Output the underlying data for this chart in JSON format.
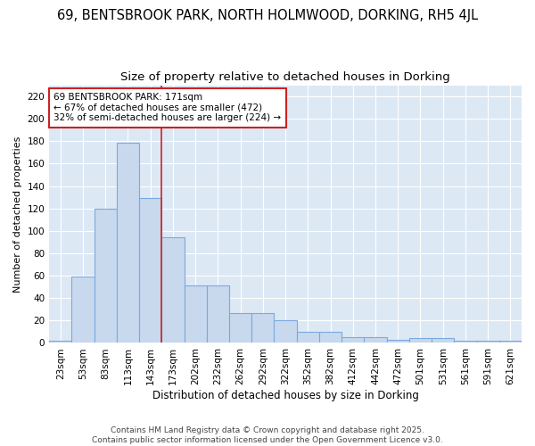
{
  "title": "69, BENTSBROOK PARK, NORTH HOLMWOOD, DORKING, RH5 4JL",
  "subtitle": "Size of property relative to detached houses in Dorking",
  "xlabel": "Distribution of detached houses by size in Dorking",
  "ylabel": "Number of detached properties",
  "bar_values": [
    2,
    59,
    120,
    179,
    129,
    94,
    51,
    51,
    27,
    27,
    20,
    10,
    10,
    5,
    5,
    3,
    4,
    4,
    2,
    2,
    2
  ],
  "bar_labels": [
    "23sqm",
    "53sqm",
    "83sqm",
    "113sqm",
    "143sqm",
    "173sqm",
    "202sqm",
    "232sqm",
    "262sqm",
    "292sqm",
    "322sqm",
    "352sqm",
    "382sqm",
    "412sqm",
    "442sqm",
    "472sqm",
    "501sqm",
    "531sqm",
    "561sqm",
    "591sqm",
    "621sqm"
  ],
  "bar_color": "#c8d9ee",
  "bar_edge_color": "#7aaadd",
  "vline_x": 4.5,
  "vline_color": "#cc2222",
  "annotation_text": "69 BENTSBROOK PARK: 171sqm\n← 67% of detached houses are smaller (472)\n32% of semi-detached houses are larger (224) →",
  "annotation_box_facecolor": "#ffffff",
  "annotation_box_edgecolor": "#cc2222",
  "ylim": [
    0,
    230
  ],
  "yticks": [
    0,
    20,
    40,
    60,
    80,
    100,
    120,
    140,
    160,
    180,
    200,
    220
  ],
  "fig_bg_color": "#ffffff",
  "plot_bg_color": "#dde8f5",
  "grid_color": "#ffffff",
  "title_color": "#333333",
  "footer_text": "Contains HM Land Registry data © Crown copyright and database right 2025.\nContains public sector information licensed under the Open Government Licence v3.0.",
  "title_fontsize": 10.5,
  "subtitle_fontsize": 9.5,
  "xlabel_fontsize": 8.5,
  "ylabel_fontsize": 8,
  "tick_fontsize": 7.5,
  "annotation_fontsize": 7.5,
  "footer_fontsize": 6.5
}
